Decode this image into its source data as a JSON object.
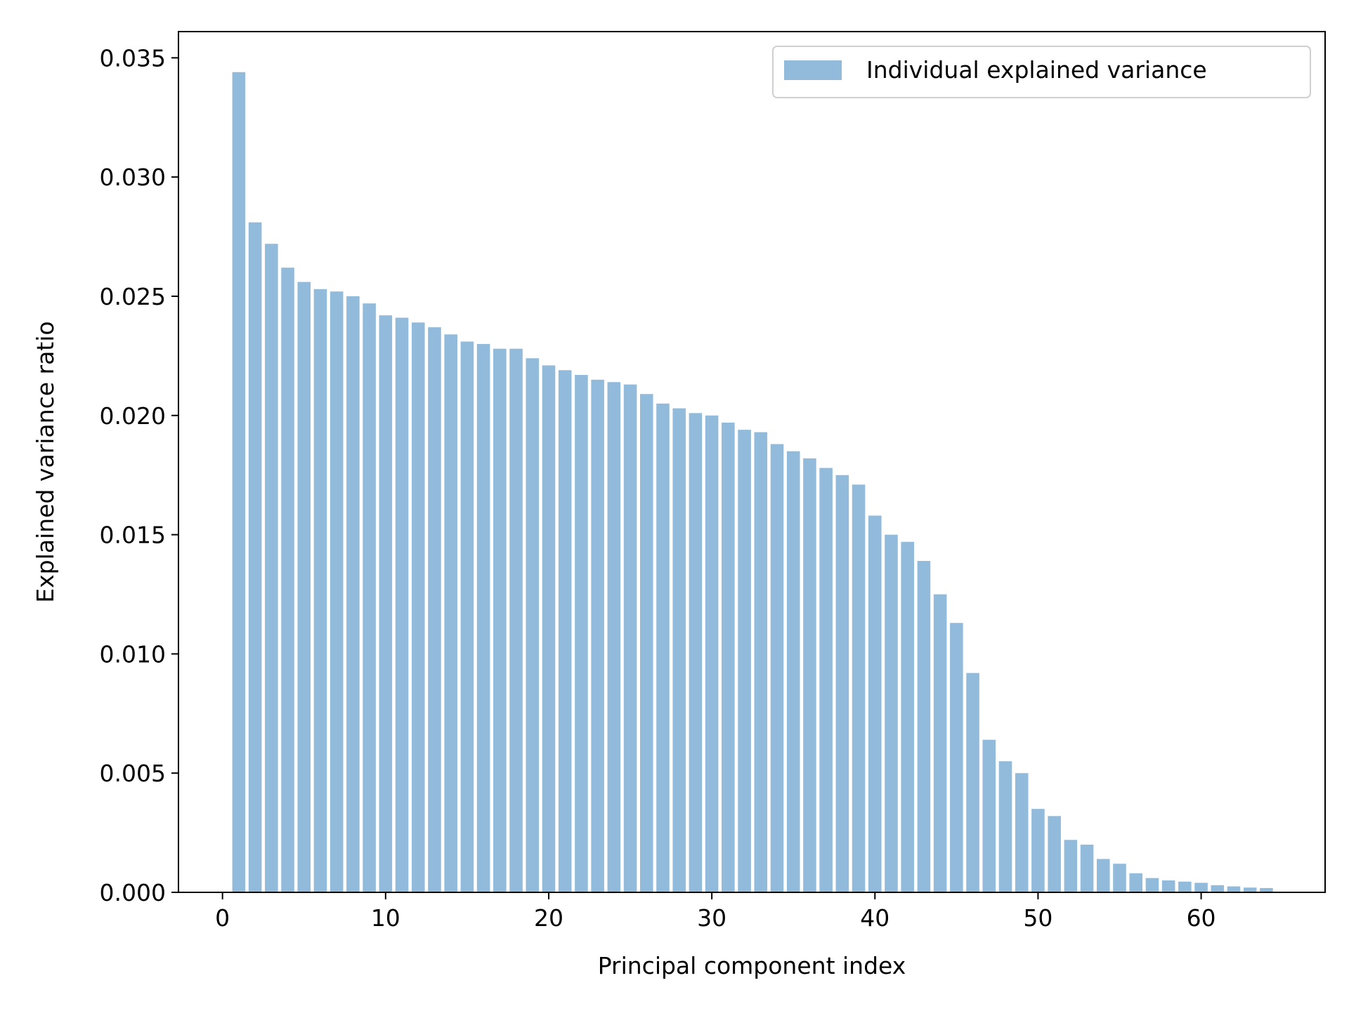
{
  "chart_data": {
    "type": "bar",
    "xlabel": "Principal component index",
    "ylabel": "Explained variance ratio",
    "xlim": [
      -2.7,
      67.6
    ],
    "ylim": [
      0,
      0.0361
    ],
    "xticks": [
      0,
      10,
      20,
      30,
      40,
      50,
      60
    ],
    "xtick_labels": [
      "0",
      "10",
      "20",
      "30",
      "40",
      "50",
      "60"
    ],
    "yticks": [
      0,
      0.005,
      0.01,
      0.015,
      0.02,
      0.025,
      0.03,
      0.035
    ],
    "ytick_labels": [
      "0.000",
      "0.005",
      "0.010",
      "0.015",
      "0.020",
      "0.025",
      "0.030",
      "0.035"
    ],
    "grid": false,
    "legend_position": "top-right",
    "series": [
      {
        "name": "Individual explained variance",
        "color": "#92bbdb",
        "x": [
          1,
          2,
          3,
          4,
          5,
          6,
          7,
          8,
          9,
          10,
          11,
          12,
          13,
          14,
          15,
          16,
          17,
          18,
          19,
          20,
          21,
          22,
          23,
          24,
          25,
          26,
          27,
          28,
          29,
          30,
          31,
          32,
          33,
          34,
          35,
          36,
          37,
          38,
          39,
          40,
          41,
          42,
          43,
          44,
          45,
          46,
          47,
          48,
          49,
          50,
          51,
          52,
          53,
          54,
          55,
          56,
          57,
          58,
          59,
          60,
          61,
          62,
          63,
          64
        ],
        "values": [
          0.0344,
          0.0281,
          0.0272,
          0.0262,
          0.0256,
          0.0253,
          0.0252,
          0.025,
          0.0247,
          0.0242,
          0.0241,
          0.0239,
          0.0237,
          0.0234,
          0.0231,
          0.023,
          0.0228,
          0.0228,
          0.0224,
          0.0221,
          0.0219,
          0.0217,
          0.0215,
          0.0214,
          0.0213,
          0.0209,
          0.0205,
          0.0203,
          0.0201,
          0.02,
          0.0197,
          0.0194,
          0.0193,
          0.0188,
          0.0185,
          0.0182,
          0.0178,
          0.0175,
          0.0171,
          0.0158,
          0.015,
          0.0147,
          0.0139,
          0.0125,
          0.0113,
          0.0092,
          0.0064,
          0.0055,
          0.005,
          0.0035,
          0.0032,
          0.0022,
          0.002,
          0.0014,
          0.0012,
          0.0008,
          0.0006,
          0.0005,
          0.00045,
          0.0004,
          0.0003,
          0.00025,
          0.0002,
          0.00018
        ]
      }
    ]
  }
}
